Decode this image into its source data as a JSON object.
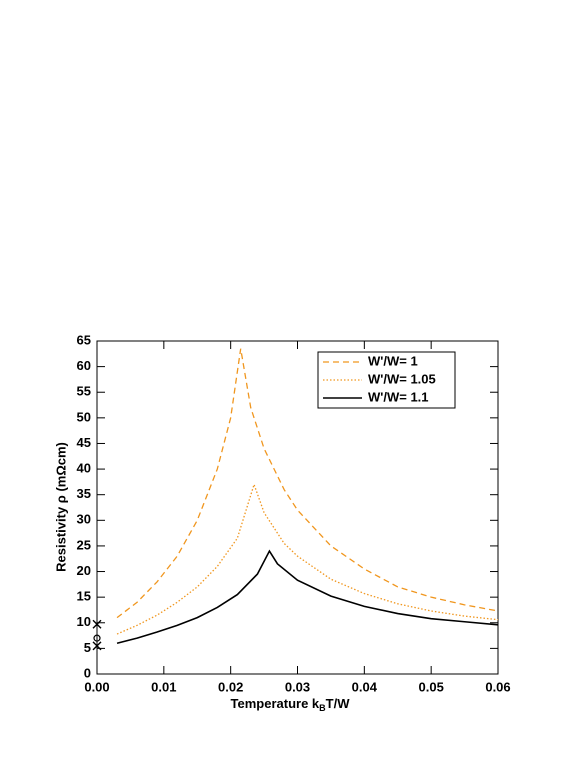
{
  "chart_data": {
    "type": "line",
    "xlabel": {
      "text": "Temperature k",
      "sub": "B",
      "tail": "T/W"
    },
    "ylabel": "Resistivity ρ (mΩcm)",
    "xlim": [
      0,
      0.06
    ],
    "ylim": [
      0,
      65
    ],
    "xticks": [
      {
        "value": 0,
        "label": "0.00"
      },
      0.01,
      0.02,
      0.03,
      0.04,
      0.05,
      0.06
    ],
    "yticks": [
      0,
      5,
      10,
      15,
      20,
      25,
      30,
      35,
      40,
      45,
      50,
      55,
      60,
      65
    ],
    "legend": "upper right",
    "series": [
      {
        "name": "W'/W= 1",
        "color": "#f0961e",
        "dash": "dashed",
        "x": [
          0.003,
          0.006,
          0.009,
          0.012,
          0.015,
          0.018,
          0.02,
          0.0215,
          0.023,
          0.025,
          0.028,
          0.03,
          0.035,
          0.04,
          0.045,
          0.05,
          0.055,
          0.06
        ],
        "values": [
          11,
          14,
          18,
          23,
          30,
          40,
          50,
          63.5,
          52,
          44,
          36,
          32,
          25,
          20.5,
          17,
          15,
          13.5,
          12.3
        ]
      },
      {
        "name": "W'/W= 1.05",
        "color": "#f0961e",
        "dash": "dotted",
        "x": [
          0.003,
          0.006,
          0.009,
          0.012,
          0.015,
          0.018,
          0.021,
          0.0235,
          0.025,
          0.028,
          0.03,
          0.035,
          0.04,
          0.045,
          0.05,
          0.055,
          0.06
        ],
        "values": [
          7.8,
          9.5,
          11.5,
          14,
          17,
          21,
          26.5,
          37,
          31.5,
          25.5,
          23,
          18.5,
          15.7,
          13.7,
          12.3,
          11.3,
          10.6
        ]
      },
      {
        "name": "W'/W= 1.1",
        "color": "#000000",
        "dash": "solid",
        "x": [
          0.003,
          0.006,
          0.009,
          0.012,
          0.015,
          0.018,
          0.021,
          0.024,
          0.0258,
          0.027,
          0.03,
          0.035,
          0.04,
          0.045,
          0.05,
          0.055,
          0.06
        ],
        "values": [
          6,
          7,
          8.2,
          9.5,
          11,
          13,
          15.5,
          19.5,
          24,
          21.5,
          18.3,
          15.2,
          13.2,
          11.8,
          10.8,
          10.2,
          9.6
        ]
      }
    ],
    "points": {
      "x": [
        0,
        0,
        0
      ],
      "y": [
        9.7,
        7,
        5.5
      ],
      "markers": [
        "x",
        "o",
        "x"
      ]
    }
  }
}
